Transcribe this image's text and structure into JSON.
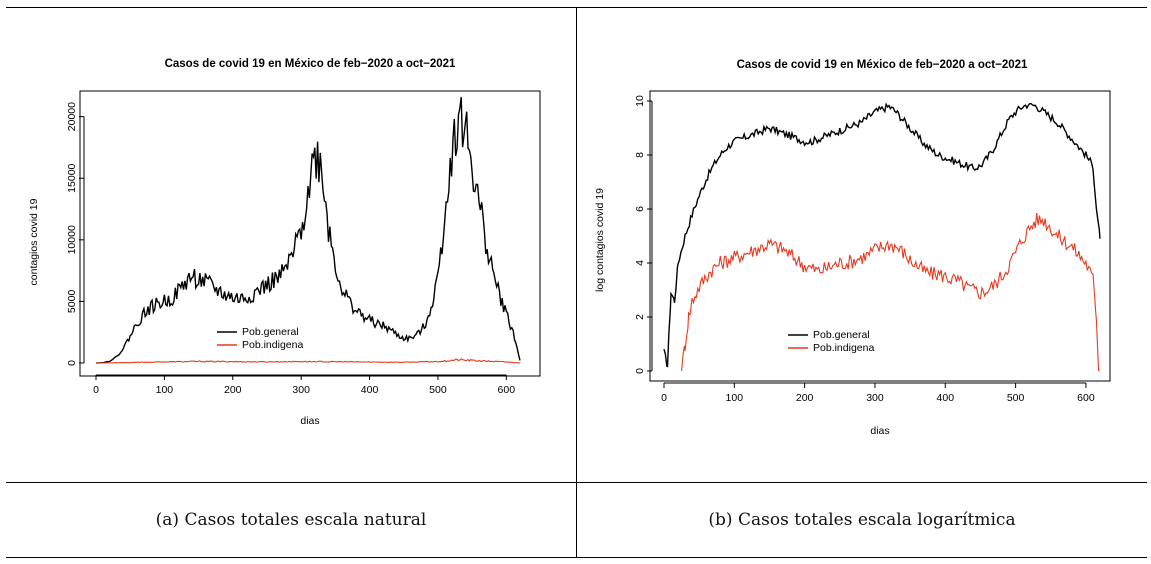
{
  "chart_data": [
    {
      "type": "line",
      "title": "Casos de covid 19 en México de feb−2020 a oct−2021",
      "xlabel": "dias",
      "ylabel": "contagios covid 19",
      "xlim": [
        0,
        620
      ],
      "ylim": [
        0,
        22000
      ],
      "xticks": [
        0,
        100,
        200,
        300,
        400,
        500,
        600
      ],
      "yticks": [
        0,
        5000,
        10000,
        15000,
        20000
      ],
      "grid": false,
      "legend": "center-bottom",
      "series": [
        {
          "name": "Pob.general",
          "color": "#000000",
          "x": [
            0,
            10,
            20,
            30,
            40,
            50,
            60,
            70,
            80,
            90,
            100,
            110,
            120,
            130,
            140,
            150,
            160,
            170,
            180,
            190,
            200,
            210,
            220,
            230,
            240,
            250,
            260,
            270,
            280,
            290,
            300,
            310,
            320,
            330,
            340,
            350,
            360,
            370,
            380,
            390,
            400,
            410,
            420,
            430,
            440,
            450,
            460,
            470,
            480,
            490,
            500,
            510,
            520,
            530,
            540,
            550,
            560,
            570,
            580,
            590,
            600,
            610,
            620
          ],
          "y": [
            0,
            30,
            150,
            500,
            1200,
            2200,
            3200,
            4000,
            4500,
            4800,
            5000,
            5200,
            5800,
            6500,
            7000,
            6800,
            6500,
            6200,
            5800,
            5500,
            5300,
            5200,
            5300,
            5600,
            6000,
            6300,
            6700,
            7000,
            7800,
            9000,
            11000,
            14000,
            17000,
            16000,
            11000,
            8000,
            6000,
            5000,
            4300,
            3800,
            3500,
            3200,
            3000,
            2700,
            2300,
            2000,
            2000,
            2300,
            3000,
            4500,
            7000,
            12000,
            17000,
            20000,
            19000,
            16000,
            13000,
            10000,
            7500,
            5500,
            4000,
            2500,
            200
          ]
        },
        {
          "name": "Pob.indigena",
          "color": "#e8391e",
          "x": [
            0,
            50,
            100,
            150,
            200,
            250,
            300,
            350,
            400,
            450,
            500,
            530,
            560,
            600,
            620
          ],
          "y": [
            0,
            40,
            90,
            130,
            110,
            90,
            120,
            100,
            80,
            60,
            120,
            260,
            180,
            80,
            5
          ]
        }
      ]
    },
    {
      "type": "line",
      "title": "Casos de covid 19 en México de feb−2020 a oct−2021",
      "xlabel": "dias",
      "ylabel": "log contagios covid 19",
      "xlim": [
        0,
        620
      ],
      "ylim": [
        0,
        10
      ],
      "xticks": [
        0,
        100,
        200,
        300,
        400,
        500,
        600
      ],
      "yticks": [
        0,
        2,
        4,
        6,
        8,
        10
      ],
      "grid": false,
      "legend": "center-bottom",
      "series": [
        {
          "name": "Pob.general",
          "color": "#000000",
          "x": [
            0,
            5,
            10,
            15,
            20,
            30,
            40,
            50,
            60,
            70,
            80,
            90,
            100,
            110,
            120,
            130,
            140,
            150,
            160,
            170,
            180,
            190,
            200,
            210,
            220,
            230,
            240,
            250,
            260,
            270,
            280,
            290,
            300,
            310,
            320,
            330,
            340,
            350,
            360,
            370,
            380,
            390,
            400,
            410,
            420,
            430,
            440,
            450,
            460,
            470,
            480,
            490,
            500,
            510,
            520,
            530,
            540,
            550,
            560,
            570,
            580,
            590,
            600,
            610,
            615,
            620
          ],
          "y": [
            0.7,
            0.2,
            2.9,
            2.6,
            4.0,
            5.0,
            5.8,
            6.5,
            7.1,
            7.6,
            8.0,
            8.3,
            8.5,
            8.6,
            8.7,
            8.8,
            8.9,
            9.0,
            8.9,
            8.8,
            8.7,
            8.6,
            8.5,
            8.5,
            8.6,
            8.7,
            8.8,
            8.9,
            9.0,
            9.1,
            9.2,
            9.4,
            9.6,
            9.7,
            9.8,
            9.6,
            9.3,
            9.0,
            8.7,
            8.4,
            8.2,
            8.0,
            7.9,
            7.8,
            7.7,
            7.6,
            7.5,
            7.6,
            7.9,
            8.3,
            8.8,
            9.3,
            9.6,
            9.8,
            9.9,
            9.8,
            9.6,
            9.4,
            9.2,
            8.9,
            8.6,
            8.3,
            8.0,
            7.6,
            6.0,
            4.9
          ]
        },
        {
          "name": "Pob.indigena",
          "color": "#e8391e",
          "x": [
            25,
            30,
            35,
            40,
            50,
            60,
            70,
            80,
            90,
            100,
            110,
            120,
            130,
            140,
            150,
            160,
            170,
            180,
            190,
            200,
            210,
            220,
            230,
            240,
            250,
            260,
            270,
            280,
            290,
            300,
            310,
            320,
            330,
            340,
            350,
            360,
            370,
            380,
            390,
            400,
            410,
            420,
            430,
            440,
            450,
            460,
            470,
            480,
            490,
            500,
            510,
            520,
            530,
            540,
            550,
            560,
            570,
            580,
            590,
            600,
            610,
            615,
            618
          ],
          "y": [
            0.0,
            1.0,
            2.0,
            2.6,
            3.1,
            3.5,
            3.8,
            4.0,
            4.1,
            4.2,
            4.3,
            4.4,
            4.5,
            4.6,
            4.7,
            4.6,
            4.5,
            4.3,
            4.1,
            3.9,
            3.8,
            3.7,
            3.8,
            3.9,
            4.0,
            4.0,
            4.1,
            4.2,
            4.3,
            4.5,
            4.6,
            4.7,
            4.6,
            4.4,
            4.1,
            3.9,
            3.7,
            3.6,
            3.6,
            3.5,
            3.4,
            3.3,
            3.1,
            3.0,
            2.9,
            3.0,
            3.2,
            3.5,
            3.9,
            4.4,
            4.9,
            5.3,
            5.6,
            5.6,
            5.3,
            5.0,
            4.8,
            4.6,
            4.3,
            4.0,
            3.4,
            2.0,
            0.0
          ]
        }
      ]
    }
  ],
  "captions": {
    "left": "(a) Casos totales escala natural",
    "right": "(b) Casos totales escala logarítmica"
  }
}
